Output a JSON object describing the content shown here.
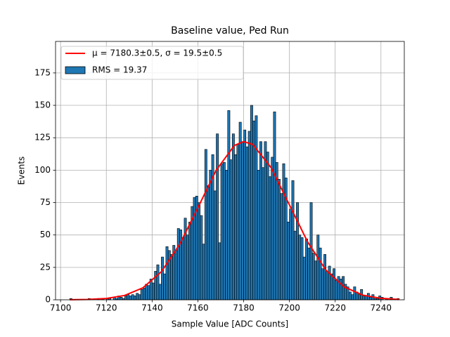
{
  "chart_data": {
    "type": "histogram",
    "title": "Baseline value, Ped Run",
    "xlabel": "Sample Value [ADC Counts]",
    "ylabel": "Events",
    "label": "RMS = 19.37",
    "color": "#1f77b4",
    "edgecolor": "#000000",
    "bins": [
      7104,
      7105,
      7106,
      7107,
      7108,
      7109,
      7110,
      7111,
      7112,
      7113,
      7114,
      7115,
      7116,
      7117,
      7118,
      7119,
      7120,
      7121,
      7122,
      7123,
      7124,
      7125,
      7126,
      7127,
      7128,
      7129,
      7130,
      7131,
      7132,
      7133,
      7134,
      7135,
      7136,
      7137,
      7138,
      7139,
      7140,
      7141,
      7142,
      7143,
      7144,
      7145,
      7146,
      7147,
      7148,
      7149,
      7150,
      7151,
      7152,
      7153,
      7154,
      7155,
      7156,
      7157,
      7158,
      7159,
      7160,
      7161,
      7162,
      7163,
      7164,
      7165,
      7166,
      7167,
      7168,
      7169,
      7170,
      7171,
      7172,
      7173,
      7174,
      7175,
      7176,
      7177,
      7178,
      7179,
      7180,
      7181,
      7182,
      7183,
      7184,
      7185,
      7186,
      7187,
      7188,
      7189,
      7190,
      7191,
      7192,
      7193,
      7194,
      7195,
      7196,
      7197,
      7198,
      7199,
      7200,
      7201,
      7202,
      7203,
      7204,
      7205,
      7206,
      7207,
      7208,
      7209,
      7210,
      7211,
      7212,
      7213,
      7214,
      7215,
      7216,
      7217,
      7218,
      7219,
      7220,
      7221,
      7222,
      7223,
      7224,
      7225,
      7226,
      7227,
      7228,
      7229,
      7230,
      7231,
      7232,
      7233,
      7234,
      7235,
      7236,
      7237,
      7238,
      7239,
      7240,
      7241,
      7242,
      7243,
      7244,
      7245,
      7246,
      7247,
      7248
    ],
    "values": [
      1,
      0,
      0,
      0,
      0,
      0,
      0,
      0,
      1,
      0,
      0,
      0,
      1,
      0,
      1,
      0,
      1,
      1,
      0,
      2,
      1,
      3,
      2,
      1,
      3,
      4,
      3,
      4,
      3,
      5,
      4,
      8,
      9,
      12,
      11,
      16,
      13,
      22,
      27,
      12,
      33,
      20,
      41,
      38,
      35,
      42,
      38,
      55,
      54,
      48,
      63,
      50,
      60,
      72,
      79,
      80,
      75,
      65,
      43,
      116,
      88,
      100,
      112,
      84,
      128,
      44,
      105,
      106,
      100,
      146,
      108,
      128,
      112,
      120,
      137,
      122,
      131,
      118,
      130,
      150,
      138,
      142,
      100,
      122,
      102,
      122,
      114,
      95,
      110,
      145,
      106,
      93,
      82,
      105,
      94,
      60,
      70,
      92,
      53,
      75,
      50,
      48,
      33,
      47,
      40,
      75,
      36,
      30,
      50,
      40,
      24,
      35,
      22,
      26,
      20,
      24,
      15,
      18,
      16,
      18,
      12,
      10,
      6,
      4,
      10,
      6,
      4,
      8,
      3,
      3,
      5,
      2,
      4,
      1,
      1,
      3,
      2,
      0,
      1,
      0,
      2,
      0,
      0,
      1
    ],
    "fit": {
      "type": "line",
      "name": "μ = 7180.3±0.5, σ = 19.5±0.5",
      "color": "#ff0000",
      "x": [
        7104,
        7112,
        7120,
        7128,
        7136,
        7144,
        7152,
        7160,
        7168,
        7176,
        7180,
        7184,
        7192,
        7200,
        7208,
        7216,
        7224,
        7232,
        7240,
        7248
      ],
      "values": [
        0.06,
        0.26,
        1.02,
        3.34,
        9.24,
        21.6,
        42.6,
        71.0,
        100.0,
        119.1,
        122.0,
        119.8,
        101.9,
        73.2,
        44.5,
        22.8,
        9.9,
        3.63,
        1.12,
        0.29
      ]
    },
    "xlim": [
      7097.8,
      7250.2
    ],
    "ylim": [
      0,
      199.3
    ],
    "xticks": [
      7100,
      7120,
      7140,
      7160,
      7180,
      7200,
      7220,
      7240
    ],
    "yticks": [
      0,
      25,
      50,
      75,
      100,
      125,
      150,
      175
    ],
    "grid": true,
    "legend": "upper left"
  }
}
